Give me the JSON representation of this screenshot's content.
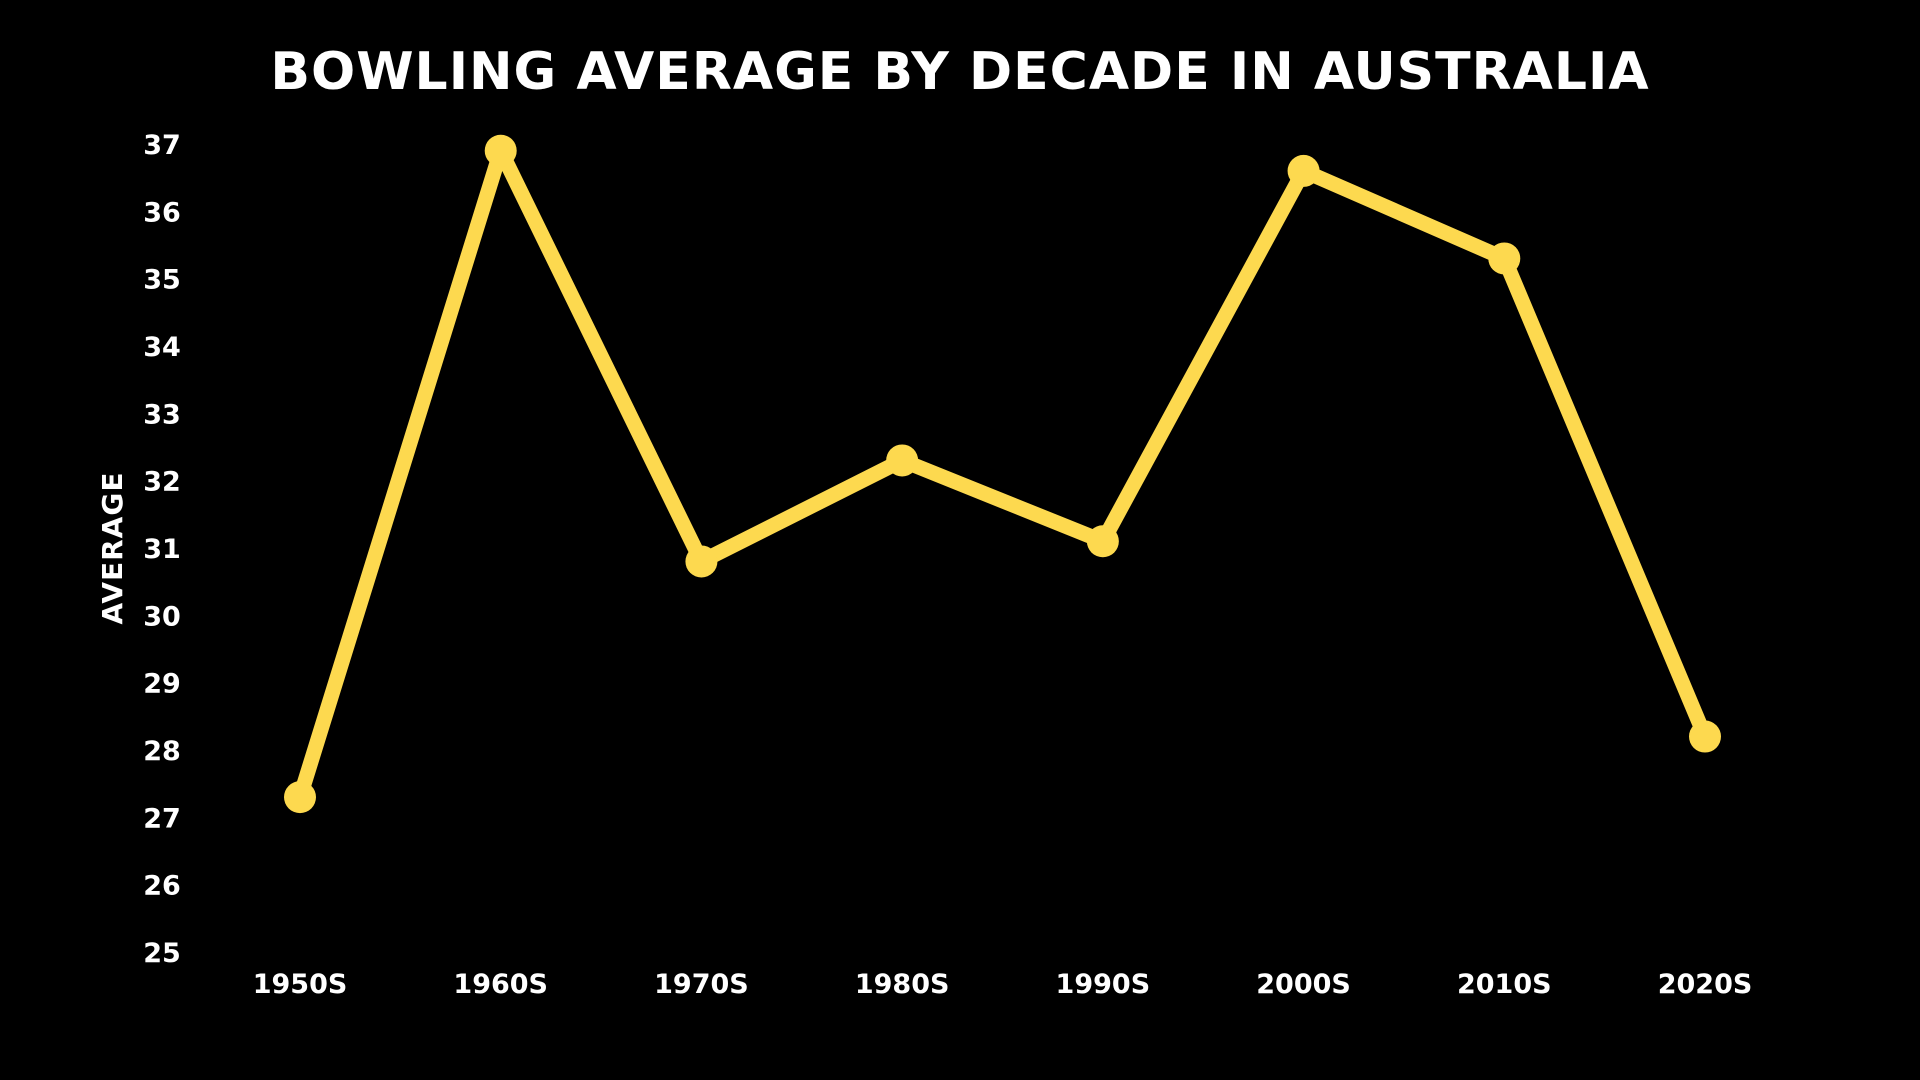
{
  "chart_data": {
    "type": "line",
    "title": "Bowling Average by Decade in Australia",
    "xlabel": "",
    "ylabel": "AVERAGE",
    "categories": [
      "1950S",
      "1960S",
      "1970S",
      "1980S",
      "1990S",
      "2000S",
      "2010S",
      "2020S"
    ],
    "series": [
      {
        "values": [
          27.3,
          36.9,
          30.8,
          32.3,
          31.1,
          36.6,
          35.3,
          28.2
        ],
        "color": "#fdd94f"
      }
    ],
    "yticks": [
      "37",
      "36",
      "35",
      "34",
      "33",
      "32",
      "31",
      "30",
      "29",
      "28",
      "27",
      "26",
      "25"
    ],
    "ylim": [
      25,
      37
    ],
    "grid": false,
    "legend": "none",
    "background": "#000000",
    "text_color": "#ffffff"
  }
}
